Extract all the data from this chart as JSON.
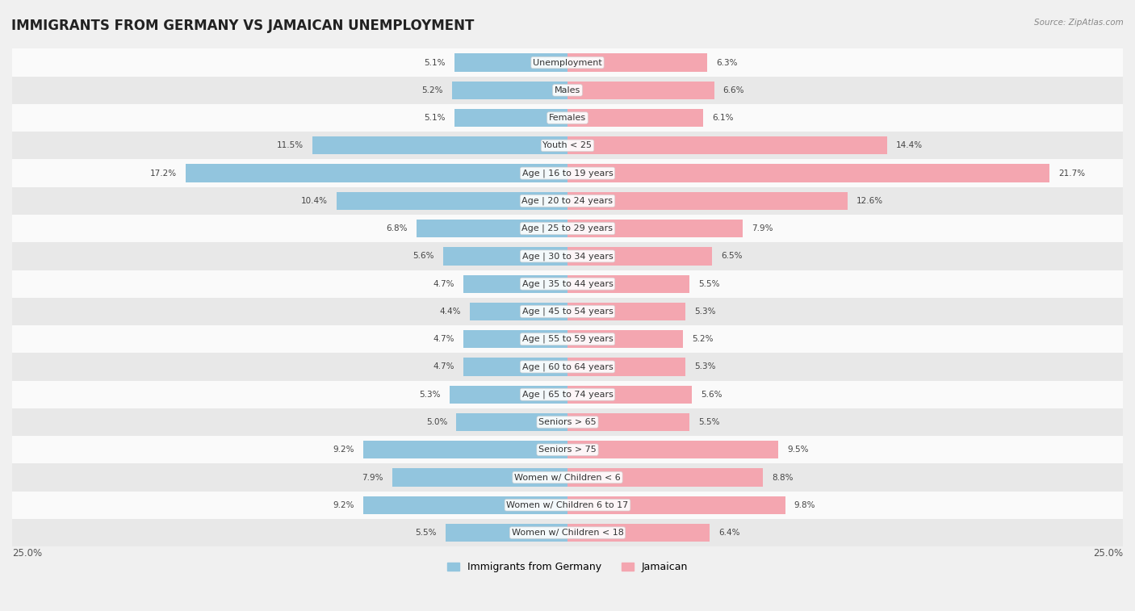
{
  "title": "IMMIGRANTS FROM GERMANY VS JAMAICAN UNEMPLOYMENT",
  "source": "Source: ZipAtlas.com",
  "categories": [
    "Unemployment",
    "Males",
    "Females",
    "Youth < 25",
    "Age | 16 to 19 years",
    "Age | 20 to 24 years",
    "Age | 25 to 29 years",
    "Age | 30 to 34 years",
    "Age | 35 to 44 years",
    "Age | 45 to 54 years",
    "Age | 55 to 59 years",
    "Age | 60 to 64 years",
    "Age | 65 to 74 years",
    "Seniors > 65",
    "Seniors > 75",
    "Women w/ Children < 6",
    "Women w/ Children 6 to 17",
    "Women w/ Children < 18"
  ],
  "germany_values": [
    5.1,
    5.2,
    5.1,
    11.5,
    17.2,
    10.4,
    6.8,
    5.6,
    4.7,
    4.4,
    4.7,
    4.7,
    5.3,
    5.0,
    9.2,
    7.9,
    9.2,
    5.5
  ],
  "jamaican_values": [
    6.3,
    6.6,
    6.1,
    14.4,
    21.7,
    12.6,
    7.9,
    6.5,
    5.5,
    5.3,
    5.2,
    5.3,
    5.6,
    5.5,
    9.5,
    8.8,
    9.8,
    6.4
  ],
  "germany_color": "#92c5de",
  "jamaican_color": "#f4a6b0",
  "bar_height": 0.65,
  "max_val": 25.0,
  "legend_germany": "Immigrants from Germany",
  "legend_jamaican": "Jamaican",
  "bg_color": "#f0f0f0",
  "row_light_color": "#fafafa",
  "row_dark_color": "#e8e8e8",
  "title_fontsize": 12,
  "label_fontsize": 8,
  "value_fontsize": 7.5
}
